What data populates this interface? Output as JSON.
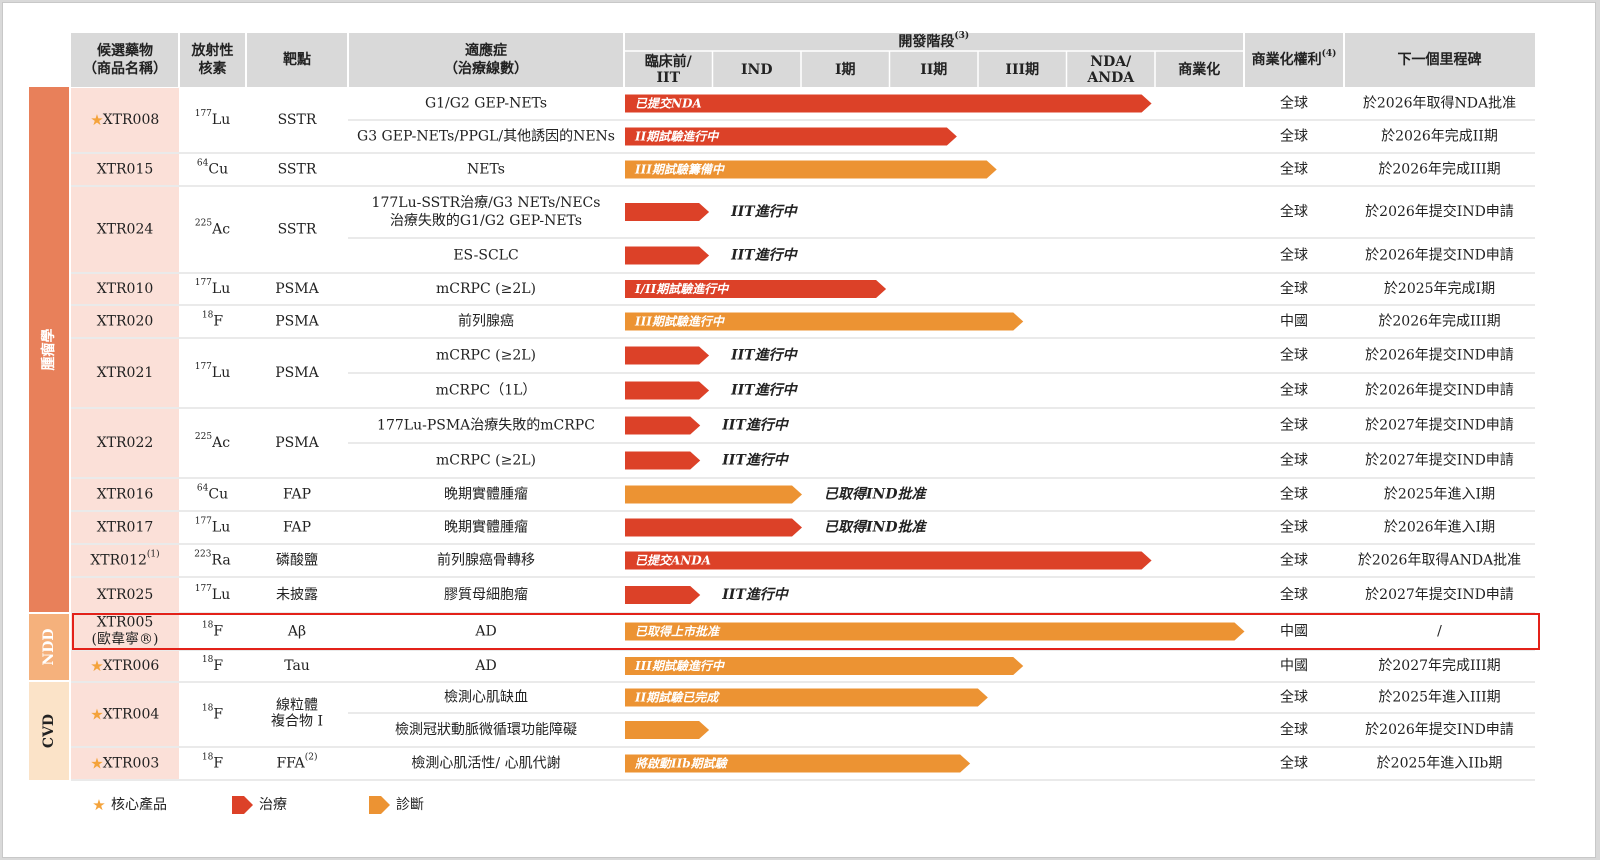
{
  "header": {
    "candidate": [
      "候選藥物",
      "（商品名稱）"
    ],
    "isotope": [
      "放射性",
      "核素"
    ],
    "target": "靶點",
    "indication": [
      "適應症",
      "（治療線數）"
    ],
    "phase_group": "開發階段",
    "phase_group_sup": "(3)",
    "phases": [
      [
        "臨床前/",
        "IIT"
      ],
      [
        "IND"
      ],
      [
        "I期"
      ],
      [
        "II期"
      ],
      [
        "III期"
      ],
      [
        "NDA/",
        "ANDA"
      ],
      [
        "商業化"
      ]
    ],
    "rights": "商業化權利",
    "rights_sup": "(4)",
    "milestone": "下一個里程碑"
  },
  "categories": [
    {
      "label": "腫瘤學",
      "color": "#e8805a",
      "text_color": "#ffffff"
    },
    {
      "label": "NDD",
      "color": "#f5b17c",
      "text_color": "#ffffff"
    },
    {
      "label": "CVD",
      "color": "#fbe3c8",
      "text_color": "#222222"
    }
  ],
  "colors": {
    "therapy": "#dc4128",
    "diagnosis": "#ec9333",
    "candidate_bg": "#fbe0d8",
    "header_bg": "#d9d9d9",
    "highlight": "#e32119",
    "star": "#f4a33b"
  },
  "drugs": [
    {
      "name": "XTR008",
      "star": true,
      "iso_mass": "177",
      "iso_el": "Lu",
      "target": "SSTR",
      "cat": 0
    },
    {
      "name": "XTR015",
      "star": false,
      "iso_mass": "64",
      "iso_el": "Cu",
      "target": "SSTR",
      "cat": 0
    },
    {
      "name": "XTR024",
      "star": false,
      "iso_mass": "225",
      "iso_el": "Ac",
      "target": "SSTR",
      "cat": 0
    },
    {
      "name": "XTR010",
      "star": false,
      "iso_mass": "177",
      "iso_el": "Lu",
      "target": "PSMA",
      "cat": 0
    },
    {
      "name": "XTR020",
      "star": false,
      "iso_mass": "18",
      "iso_el": "F",
      "target": "PSMA",
      "cat": 0
    },
    {
      "name": "XTR021",
      "star": false,
      "iso_mass": "177",
      "iso_el": "Lu",
      "target": "PSMA",
      "cat": 0
    },
    {
      "name": "XTR022",
      "star": false,
      "iso_mass": "225",
      "iso_el": "Ac",
      "target": "PSMA",
      "cat": 0
    },
    {
      "name": "XTR016",
      "star": false,
      "iso_mass": "64",
      "iso_el": "Cu",
      "target": "FAP",
      "cat": 0
    },
    {
      "name": "XTR017",
      "star": false,
      "iso_mass": "177",
      "iso_el": "Lu",
      "target": "FAP",
      "cat": 0
    },
    {
      "name": "XTR012",
      "name_sup": "(1)",
      "star": false,
      "iso_mass": "223",
      "iso_el": "Ra",
      "target": "磷酸鹽",
      "cat": 0
    },
    {
      "name": "XTR025",
      "star": false,
      "iso_mass": "177",
      "iso_el": "Lu",
      "target": "未披露",
      "cat": 0
    },
    {
      "name": "XTR005",
      "name2": "(歐韋寧®)",
      "star": false,
      "iso_mass": "18",
      "iso_el": "F",
      "target": "Aβ",
      "cat": 1,
      "highlight": true
    },
    {
      "name": "XTR006",
      "star": true,
      "iso_mass": "18",
      "iso_el": "F",
      "target": "Tau",
      "cat": 1
    },
    {
      "name": "XTR004",
      "star": true,
      "iso_mass": "18",
      "iso_el": "F",
      "target": "線粒體",
      "target2": "複合物 I",
      "cat": 2
    },
    {
      "name": "XTR003",
      "star": true,
      "iso_mass": "18",
      "iso_el": "F",
      "target": "FFA",
      "target_sup": "(2)",
      "cat": 2
    }
  ],
  "chart_data": {
    "type": "table",
    "phases": [
      "臨床前/IIT",
      "IND",
      "I期",
      "II期",
      "III期",
      "NDA/ANDA",
      "商業化"
    ],
    "rows": [
      {
        "drug": 0,
        "indication": [
          "G1/G2 GEP-NETs"
        ],
        "bar_type": "therapy",
        "progress": 5.95,
        "label": "已提交NDA",
        "label_outside": false,
        "rights": "全球",
        "milestone": "於2026年取得NDA批准"
      },
      {
        "drug": 0,
        "indication": [
          "G3 GEP-NETs/PPGL/其他誘因的NENs"
        ],
        "bar_type": "therapy",
        "progress": 3.75,
        "label": "II期試驗進行中",
        "label_outside": false,
        "rights": "全球",
        "milestone": "於2026年完成II期"
      },
      {
        "drug": 1,
        "indication": [
          "NETs"
        ],
        "bar_type": "diagnosis",
        "progress": 4.2,
        "label": "III期試驗籌備中",
        "label_outside": false,
        "rights": "全球",
        "milestone": "於2026年完成III期"
      },
      {
        "drug": 2,
        "indication": [
          "177Lu-SSTR治療/G3 NETs/NECs",
          "治療失敗的G1/G2 GEP-NETs"
        ],
        "bar_type": "therapy",
        "progress": 0.95,
        "label": "IIT進行中",
        "label_outside": true,
        "rights": "全球",
        "milestone": "於2026年提交IND申請"
      },
      {
        "drug": 2,
        "indication": [
          "ES-SCLC"
        ],
        "bar_type": "therapy",
        "progress": 0.95,
        "label": "IIT進行中",
        "label_outside": true,
        "rights": "全球",
        "milestone": "於2026年提交IND申請"
      },
      {
        "drug": 3,
        "indication": [
          "mCRPC (≥2L)"
        ],
        "bar_type": "therapy",
        "progress": 2.95,
        "label": "I/II期試驗進行中",
        "label_outside": false,
        "rights": "全球",
        "milestone": "於2025年完成I期"
      },
      {
        "drug": 4,
        "indication": [
          "前列腺癌"
        ],
        "bar_type": "diagnosis",
        "progress": 4.5,
        "label": "III期試驗進行中",
        "label_outside": false,
        "rights": "中國",
        "milestone": "於2026年完成III期"
      },
      {
        "drug": 5,
        "indication": [
          "mCRPC (≥2L)"
        ],
        "bar_type": "therapy",
        "progress": 0.95,
        "label": "IIT進行中",
        "label_outside": true,
        "rights": "全球",
        "milestone": "於2026年提交IND申請"
      },
      {
        "drug": 5,
        "indication": [
          "mCRPC（1L）"
        ],
        "bar_type": "therapy",
        "progress": 0.95,
        "label": "IIT進行中",
        "label_outside": true,
        "rights": "全球",
        "milestone": "於2026年提交IND申請"
      },
      {
        "drug": 6,
        "indication": [
          "177Lu-PSMA治療失敗的mCRPC"
        ],
        "bar_type": "therapy",
        "progress": 0.85,
        "label": "IIT進行中",
        "label_outside": true,
        "rights": "全球",
        "milestone": "於2027年提交IND申請"
      },
      {
        "drug": 6,
        "indication": [
          "mCRPC (≥2L)"
        ],
        "bar_type": "therapy",
        "progress": 0.85,
        "label": "IIT進行中",
        "label_outside": true,
        "rights": "全球",
        "milestone": "於2027年提交IND申請"
      },
      {
        "drug": 7,
        "indication": [
          "晚期實體腫瘤"
        ],
        "bar_type": "diagnosis",
        "progress": 2.0,
        "label": "已取得IND批准",
        "label_outside": true,
        "rights": "全球",
        "milestone": "於2025年進入I期"
      },
      {
        "drug": 8,
        "indication": [
          "晚期實體腫瘤"
        ],
        "bar_type": "therapy",
        "progress": 2.0,
        "label": "已取得IND批准",
        "label_outside": true,
        "rights": "全球",
        "milestone": "於2026年進入I期"
      },
      {
        "drug": 9,
        "indication": [
          "前列腺癌骨轉移"
        ],
        "bar_type": "therapy",
        "progress": 5.95,
        "label": "已提交ANDA",
        "label_outside": false,
        "rights": "全球",
        "milestone": "於2026年取得ANDA批准"
      },
      {
        "drug": 10,
        "indication": [
          "膠質母細胞瘤"
        ],
        "bar_type": "therapy",
        "progress": 0.85,
        "label": "IIT進行中",
        "label_outside": true,
        "rights": "全球",
        "milestone": "於2027年提交IND申請"
      },
      {
        "drug": 11,
        "indication": [
          "AD"
        ],
        "bar_type": "diagnosis",
        "progress": 7.0,
        "label": "已取得上市批准",
        "label_outside": false,
        "rights": "中國",
        "milestone": "/"
      },
      {
        "drug": 12,
        "indication": [
          "AD"
        ],
        "bar_type": "diagnosis",
        "progress": 4.5,
        "label": "III期試驗進行中",
        "label_outside": false,
        "rights": "中國",
        "milestone": "於2027年完成III期"
      },
      {
        "drug": 13,
        "indication": [
          "檢測心肌缺血"
        ],
        "bar_type": "diagnosis",
        "progress": 4.1,
        "label": "II期試驗已完成",
        "label_outside": false,
        "rights": "全球",
        "milestone": "於2025年進入III期"
      },
      {
        "drug": 13,
        "indication": [
          "檢測冠狀動脈微循環功能障礙"
        ],
        "bar_type": "diagnosis",
        "progress": 0.95,
        "label": "",
        "label_outside": false,
        "rights": "全球",
        "milestone": "於2026年提交IND申請"
      },
      {
        "drug": 14,
        "indication": [
          "檢測心肌活性/ 心肌代謝"
        ],
        "bar_type": "diagnosis",
        "progress": 3.9,
        "label": "將啟動IIb期試驗",
        "label_outside": false,
        "rights": "全球",
        "milestone": "於2025年進入IIb期"
      }
    ]
  },
  "legend": {
    "core": "核心產品",
    "therapy": "治療",
    "diagnosis": "診斷"
  }
}
